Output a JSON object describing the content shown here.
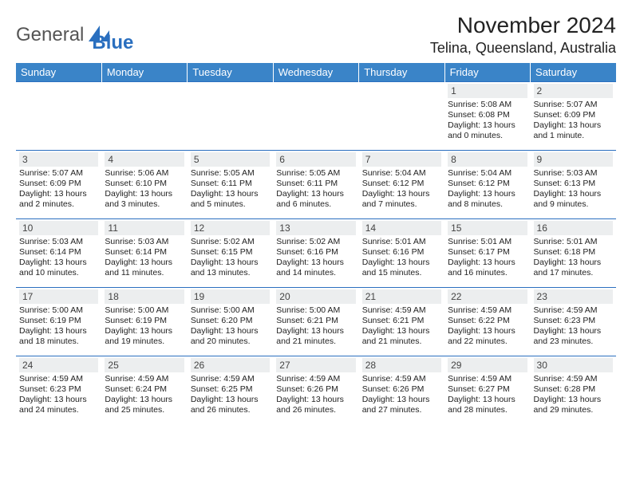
{
  "brand": {
    "part1": "General",
    "part2": "Blue"
  },
  "title": {
    "month_year": "November 2024",
    "location": "Telina, Queensland, Australia"
  },
  "weekdays": [
    "Sunday",
    "Monday",
    "Tuesday",
    "Wednesday",
    "Thursday",
    "Friday",
    "Saturday"
  ],
  "colors": {
    "header_bg": "#3a84c8",
    "header_text": "#ffffff",
    "daynum_bg": "#eceeef",
    "row_border": "#2a6fbf",
    "logo_blue": "#2a6fbf"
  },
  "calendar": {
    "type": "table",
    "columns": 7,
    "rows": 5,
    "weeks": [
      [
        null,
        null,
        null,
        null,
        null,
        {
          "daynum": "1",
          "sunrise": "Sunrise: 5:08 AM",
          "sunset": "Sunset: 6:08 PM",
          "daylight1": "Daylight: 13 hours",
          "daylight2": "and 0 minutes."
        },
        {
          "daynum": "2",
          "sunrise": "Sunrise: 5:07 AM",
          "sunset": "Sunset: 6:09 PM",
          "daylight1": "Daylight: 13 hours",
          "daylight2": "and 1 minute."
        }
      ],
      [
        {
          "daynum": "3",
          "sunrise": "Sunrise: 5:07 AM",
          "sunset": "Sunset: 6:09 PM",
          "daylight1": "Daylight: 13 hours",
          "daylight2": "and 2 minutes."
        },
        {
          "daynum": "4",
          "sunrise": "Sunrise: 5:06 AM",
          "sunset": "Sunset: 6:10 PM",
          "daylight1": "Daylight: 13 hours",
          "daylight2": "and 3 minutes."
        },
        {
          "daynum": "5",
          "sunrise": "Sunrise: 5:05 AM",
          "sunset": "Sunset: 6:11 PM",
          "daylight1": "Daylight: 13 hours",
          "daylight2": "and 5 minutes."
        },
        {
          "daynum": "6",
          "sunrise": "Sunrise: 5:05 AM",
          "sunset": "Sunset: 6:11 PM",
          "daylight1": "Daylight: 13 hours",
          "daylight2": "and 6 minutes."
        },
        {
          "daynum": "7",
          "sunrise": "Sunrise: 5:04 AM",
          "sunset": "Sunset: 6:12 PM",
          "daylight1": "Daylight: 13 hours",
          "daylight2": "and 7 minutes."
        },
        {
          "daynum": "8",
          "sunrise": "Sunrise: 5:04 AM",
          "sunset": "Sunset: 6:12 PM",
          "daylight1": "Daylight: 13 hours",
          "daylight2": "and 8 minutes."
        },
        {
          "daynum": "9",
          "sunrise": "Sunrise: 5:03 AM",
          "sunset": "Sunset: 6:13 PM",
          "daylight1": "Daylight: 13 hours",
          "daylight2": "and 9 minutes."
        }
      ],
      [
        {
          "daynum": "10",
          "sunrise": "Sunrise: 5:03 AM",
          "sunset": "Sunset: 6:14 PM",
          "daylight1": "Daylight: 13 hours",
          "daylight2": "and 10 minutes."
        },
        {
          "daynum": "11",
          "sunrise": "Sunrise: 5:03 AM",
          "sunset": "Sunset: 6:14 PM",
          "daylight1": "Daylight: 13 hours",
          "daylight2": "and 11 minutes."
        },
        {
          "daynum": "12",
          "sunrise": "Sunrise: 5:02 AM",
          "sunset": "Sunset: 6:15 PM",
          "daylight1": "Daylight: 13 hours",
          "daylight2": "and 13 minutes."
        },
        {
          "daynum": "13",
          "sunrise": "Sunrise: 5:02 AM",
          "sunset": "Sunset: 6:16 PM",
          "daylight1": "Daylight: 13 hours",
          "daylight2": "and 14 minutes."
        },
        {
          "daynum": "14",
          "sunrise": "Sunrise: 5:01 AM",
          "sunset": "Sunset: 6:16 PM",
          "daylight1": "Daylight: 13 hours",
          "daylight2": "and 15 minutes."
        },
        {
          "daynum": "15",
          "sunrise": "Sunrise: 5:01 AM",
          "sunset": "Sunset: 6:17 PM",
          "daylight1": "Daylight: 13 hours",
          "daylight2": "and 16 minutes."
        },
        {
          "daynum": "16",
          "sunrise": "Sunrise: 5:01 AM",
          "sunset": "Sunset: 6:18 PM",
          "daylight1": "Daylight: 13 hours",
          "daylight2": "and 17 minutes."
        }
      ],
      [
        {
          "daynum": "17",
          "sunrise": "Sunrise: 5:00 AM",
          "sunset": "Sunset: 6:19 PM",
          "daylight1": "Daylight: 13 hours",
          "daylight2": "and 18 minutes."
        },
        {
          "daynum": "18",
          "sunrise": "Sunrise: 5:00 AM",
          "sunset": "Sunset: 6:19 PM",
          "daylight1": "Daylight: 13 hours",
          "daylight2": "and 19 minutes."
        },
        {
          "daynum": "19",
          "sunrise": "Sunrise: 5:00 AM",
          "sunset": "Sunset: 6:20 PM",
          "daylight1": "Daylight: 13 hours",
          "daylight2": "and 20 minutes."
        },
        {
          "daynum": "20",
          "sunrise": "Sunrise: 5:00 AM",
          "sunset": "Sunset: 6:21 PM",
          "daylight1": "Daylight: 13 hours",
          "daylight2": "and 21 minutes."
        },
        {
          "daynum": "21",
          "sunrise": "Sunrise: 4:59 AM",
          "sunset": "Sunset: 6:21 PM",
          "daylight1": "Daylight: 13 hours",
          "daylight2": "and 21 minutes."
        },
        {
          "daynum": "22",
          "sunrise": "Sunrise: 4:59 AM",
          "sunset": "Sunset: 6:22 PM",
          "daylight1": "Daylight: 13 hours",
          "daylight2": "and 22 minutes."
        },
        {
          "daynum": "23",
          "sunrise": "Sunrise: 4:59 AM",
          "sunset": "Sunset: 6:23 PM",
          "daylight1": "Daylight: 13 hours",
          "daylight2": "and 23 minutes."
        }
      ],
      [
        {
          "daynum": "24",
          "sunrise": "Sunrise: 4:59 AM",
          "sunset": "Sunset: 6:23 PM",
          "daylight1": "Daylight: 13 hours",
          "daylight2": "and 24 minutes."
        },
        {
          "daynum": "25",
          "sunrise": "Sunrise: 4:59 AM",
          "sunset": "Sunset: 6:24 PM",
          "daylight1": "Daylight: 13 hours",
          "daylight2": "and 25 minutes."
        },
        {
          "daynum": "26",
          "sunrise": "Sunrise: 4:59 AM",
          "sunset": "Sunset: 6:25 PM",
          "daylight1": "Daylight: 13 hours",
          "daylight2": "and 26 minutes."
        },
        {
          "daynum": "27",
          "sunrise": "Sunrise: 4:59 AM",
          "sunset": "Sunset: 6:26 PM",
          "daylight1": "Daylight: 13 hours",
          "daylight2": "and 26 minutes."
        },
        {
          "daynum": "28",
          "sunrise": "Sunrise: 4:59 AM",
          "sunset": "Sunset: 6:26 PM",
          "daylight1": "Daylight: 13 hours",
          "daylight2": "and 27 minutes."
        },
        {
          "daynum": "29",
          "sunrise": "Sunrise: 4:59 AM",
          "sunset": "Sunset: 6:27 PM",
          "daylight1": "Daylight: 13 hours",
          "daylight2": "and 28 minutes."
        },
        {
          "daynum": "30",
          "sunrise": "Sunrise: 4:59 AM",
          "sunset": "Sunset: 6:28 PM",
          "daylight1": "Daylight: 13 hours",
          "daylight2": "and 29 minutes."
        }
      ]
    ]
  }
}
